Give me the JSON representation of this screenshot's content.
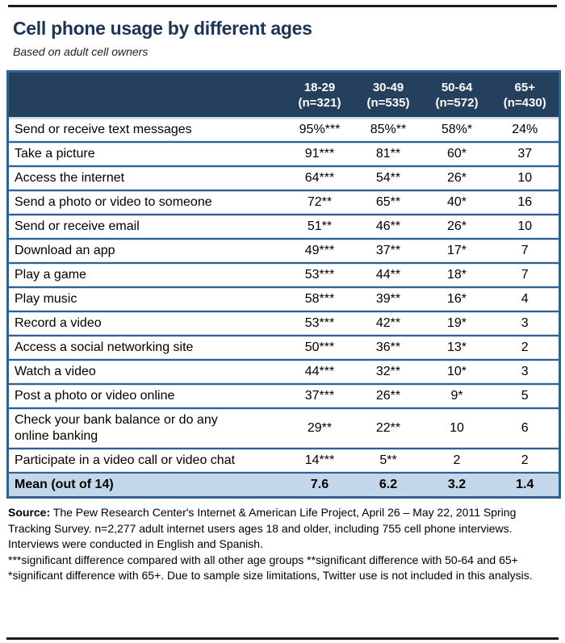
{
  "header": {
    "title": "Cell phone usage by different ages",
    "subtitle": "Based on adult cell owners"
  },
  "chart_data": {
    "type": "table",
    "columns": [
      {
        "range": "18-29",
        "n": "(n=321)"
      },
      {
        "range": "30-49",
        "n": "(n=535)"
      },
      {
        "range": "50-64",
        "n": "(n=572)"
      },
      {
        "range": "65+",
        "n": "(n=430)"
      }
    ],
    "rows": [
      {
        "label": "Send or receive text messages",
        "values": [
          "95%***",
          "85%**",
          "58%*",
          "24%"
        ]
      },
      {
        "label": "Take a picture",
        "values": [
          "91***",
          "81**",
          "60*",
          "37"
        ]
      },
      {
        "label": "Access the internet",
        "values": [
          "64***",
          "54**",
          "26*",
          "10"
        ]
      },
      {
        "label": "Send a photo or video to someone",
        "values": [
          "72**",
          "65**",
          "40*",
          "16"
        ]
      },
      {
        "label": "Send or receive email",
        "values": [
          "51**",
          "46**",
          "26*",
          "10"
        ]
      },
      {
        "label": "Download an app",
        "values": [
          "49***",
          "37**",
          "17*",
          "7"
        ]
      },
      {
        "label": "Play a game",
        "values": [
          "53***",
          "44**",
          "18*",
          "7"
        ]
      },
      {
        "label": "Play music",
        "values": [
          "58***",
          "39**",
          "16*",
          "4"
        ]
      },
      {
        "label": "Record a video",
        "values": [
          "53***",
          "42**",
          "19*",
          "3"
        ]
      },
      {
        "label": "Access a social networking site",
        "values": [
          "50***",
          "36**",
          "13*",
          "2"
        ]
      },
      {
        "label": "Watch a video",
        "values": [
          "44***",
          "32**",
          "10*",
          "3"
        ]
      },
      {
        "label": "Post a photo or video online",
        "values": [
          "37***",
          "26**",
          "9*",
          "5"
        ]
      },
      {
        "label": "Check your bank balance or do any online banking",
        "values": [
          "29**",
          "22**",
          "10",
          "6"
        ]
      },
      {
        "label": "Participate in a video call or video chat",
        "values": [
          "14***",
          "5**",
          "2",
          "2"
        ]
      }
    ],
    "mean_row": {
      "label": "Mean (out of 14)",
      "values": [
        "7.6",
        "6.2",
        "3.2",
        "1.4"
      ]
    }
  },
  "footer": {
    "source_label": "Source:",
    "source_text": " The Pew Research Center's Internet & American Life Project, April 26 – May 22, 2011 Spring Tracking Survey. n=2,277 adult internet users ages 18 and older, including 755 cell phone interviews. Interviews were conducted in English and Spanish.",
    "notes": "***significant difference compared with all other age groups **significant difference with 50-64 and 65+ *significant difference with 65+. Due to sample size limitations, Twitter use is not included in this analysis."
  },
  "colors": {
    "header_bg": "#25405e",
    "border": "#31628f",
    "light_sep": "#d3e2f0",
    "mean_row_bg": "#c3d7ea",
    "title": "#1c3557"
  }
}
